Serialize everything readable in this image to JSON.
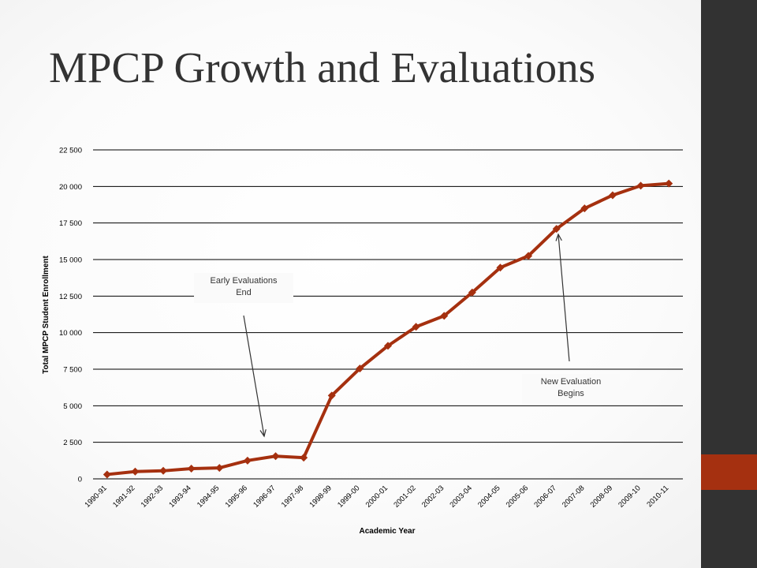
{
  "slide": {
    "title": "MPCP Growth and Evaluations",
    "colors": {
      "accent": "#a53010",
      "sidebar": "#323232",
      "series": "#a5300f"
    }
  },
  "chart_data": {
    "type": "line",
    "title": "",
    "xlabel": "Academic Year",
    "ylabel": "Total MPCP Student Enrollment",
    "ylim": [
      0,
      22500
    ],
    "yticks": [
      0,
      2500,
      5000,
      7500,
      10000,
      12500,
      15000,
      17500,
      20000,
      22500
    ],
    "ytick_labels": [
      "0",
      "2 500",
      "5 000",
      "7 500",
      "10 000",
      "12 500",
      "15 000",
      "17 500",
      "20 000",
      "22 500"
    ],
    "grid": true,
    "legend": "none",
    "categories": [
      "1990-91",
      "1991-92",
      "1992-93",
      "1993-94",
      "1994-95",
      "1995-96",
      "1996-97",
      "1997-98",
      "1998-99",
      "1999-00",
      "2000-01",
      "2001-02",
      "2002-03",
      "2003-04",
      "2004-05",
      "2005-06",
      "2006-07",
      "2007-08",
      "2008-09",
      "2009-10",
      "2010-11"
    ],
    "series": [
      {
        "values": [
          300,
          500,
          550,
          700,
          750,
          1250,
          1550,
          1450,
          5700,
          7550,
          9100,
          10400,
          11150,
          12750,
          14450,
          15250,
          17100,
          18500,
          19400,
          20050,
          20200
        ],
        "color": "#a5300f",
        "marker": "diamond"
      }
    ],
    "annotations": [
      {
        "lines": [
          "Early Evaluations",
          "End"
        ],
        "points_to": "1996-97"
      },
      {
        "lines": [
          "New Evaluation",
          "Begins"
        ],
        "points_to": "2006-07"
      }
    ]
  }
}
